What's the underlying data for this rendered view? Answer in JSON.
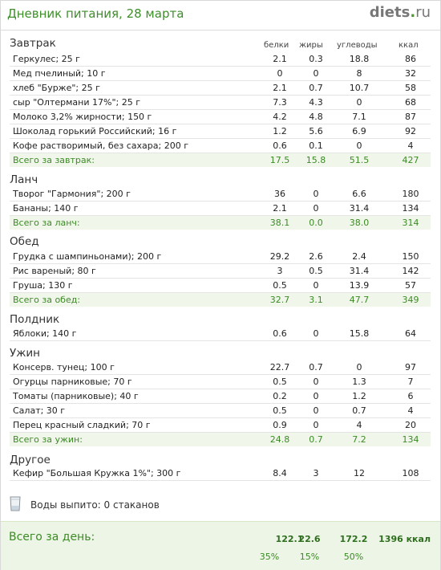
{
  "header": {
    "title": "Дневник питания, 28 марта",
    "logo_main": "diets",
    "logo_dot": ".",
    "logo_tld": "ru"
  },
  "columns": {
    "protein": "белки",
    "fat": "жиры",
    "carbs": "углеводы",
    "kcal": "ккал"
  },
  "meals": [
    {
      "title": "Завтрак",
      "items": [
        {
          "name": "Геркулес; 25 г",
          "protein": "2.1",
          "fat": "0.3",
          "carbs": "18.8",
          "kcal": "86"
        },
        {
          "name": "Мед пчелиный; 10 г",
          "protein": "0",
          "fat": "0",
          "carbs": "8",
          "kcal": "32"
        },
        {
          "name": "хлеб \"Бурже\"; 25 г",
          "protein": "2.1",
          "fat": "0.7",
          "carbs": "10.7",
          "kcal": "58"
        },
        {
          "name": "сыр \"Олтермани 17%\"; 25 г",
          "protein": "7.3",
          "fat": "4.3",
          "carbs": "0",
          "kcal": "68"
        },
        {
          "name": "Молоко 3,2% жирности; 150 г",
          "protein": "4.2",
          "fat": "4.8",
          "carbs": "7.1",
          "kcal": "87"
        },
        {
          "name": "Шоколад горький Российский; 16 г",
          "protein": "1.2",
          "fat": "5.6",
          "carbs": "6.9",
          "kcal": "92"
        },
        {
          "name": "Кофе растворимый, без сахара; 200 г",
          "protein": "0.6",
          "fat": "0.1",
          "carbs": "0",
          "kcal": "4"
        }
      ],
      "total": {
        "label": "Всего за завтрак:",
        "protein": "17.5",
        "fat": "15.8",
        "carbs": "51.5",
        "kcal": "427"
      }
    },
    {
      "title": "Ланч",
      "items": [
        {
          "name": "Творог \"Гармония\"; 200 г",
          "protein": "36",
          "fat": "0",
          "carbs": "6.6",
          "kcal": "180"
        },
        {
          "name": "Бананы; 140 г",
          "protein": "2.1",
          "fat": "0",
          "carbs": "31.4",
          "kcal": "134"
        }
      ],
      "total": {
        "label": "Всего за ланч:",
        "protein": "38.1",
        "fat": "0.0",
        "carbs": "38.0",
        "kcal": "314"
      }
    },
    {
      "title": "Обед",
      "items": [
        {
          "name": "Грудка с шампиньонами); 200 г",
          "protein": "29.2",
          "fat": "2.6",
          "carbs": "2.4",
          "kcal": "150"
        },
        {
          "name": "Рис вареный; 80 г",
          "protein": "3",
          "fat": "0.5",
          "carbs": "31.4",
          "kcal": "142"
        },
        {
          "name": "Груша; 130 г",
          "protein": "0.5",
          "fat": "0",
          "carbs": "13.9",
          "kcal": "57"
        }
      ],
      "total": {
        "label": "Всего за обед:",
        "protein": "32.7",
        "fat": "3.1",
        "carbs": "47.7",
        "kcal": "349"
      }
    },
    {
      "title": "Полдник",
      "items": [
        {
          "name": "Яблоки; 140 г",
          "protein": "0.6",
          "fat": "0",
          "carbs": "15.8",
          "kcal": "64"
        }
      ]
    },
    {
      "title": "Ужин",
      "items": [
        {
          "name": "Консерв. тунец; 100 г",
          "protein": "22.7",
          "fat": "0.7",
          "carbs": "0",
          "kcal": "97"
        },
        {
          "name": "Огурцы парниковые; 70 г",
          "protein": "0.5",
          "fat": "0",
          "carbs": "1.3",
          "kcal": "7"
        },
        {
          "name": "Томаты (парниковые); 40 г",
          "protein": "0.2",
          "fat": "0",
          "carbs": "1.2",
          "kcal": "6"
        },
        {
          "name": "Салат; 30 г",
          "protein": "0.5",
          "fat": "0",
          "carbs": "0.7",
          "kcal": "4"
        },
        {
          "name": "Перец красный сладкий; 70 г",
          "protein": "0.9",
          "fat": "0",
          "carbs": "4",
          "kcal": "20"
        }
      ],
      "total": {
        "label": "Всего за ужин:",
        "protein": "24.8",
        "fat": "0.7",
        "carbs": "7.2",
        "kcal": "134"
      }
    },
    {
      "title": "Другое",
      "items": [
        {
          "name": "Кефир \"Большая Кружка 1%\"; 300 г",
          "protein": "8.4",
          "fat": "3",
          "carbs": "12",
          "kcal": "108"
        }
      ]
    }
  ],
  "water": {
    "icon": "glass-icon",
    "label": "Воды выпито: 0 стаканов"
  },
  "day_total": {
    "label": "Всего за день:",
    "protein": "122.1",
    "fat": "22.6",
    "carbs": "172.2",
    "kcal": "1396 ккал",
    "protein_pct": "35%",
    "fat_pct": "15%",
    "carbs_pct": "50%"
  },
  "colors": {
    "accent_green": "#3c8a26",
    "total_row_bg": "#f0f7ea",
    "day_total_bg": "#edf6e6"
  }
}
